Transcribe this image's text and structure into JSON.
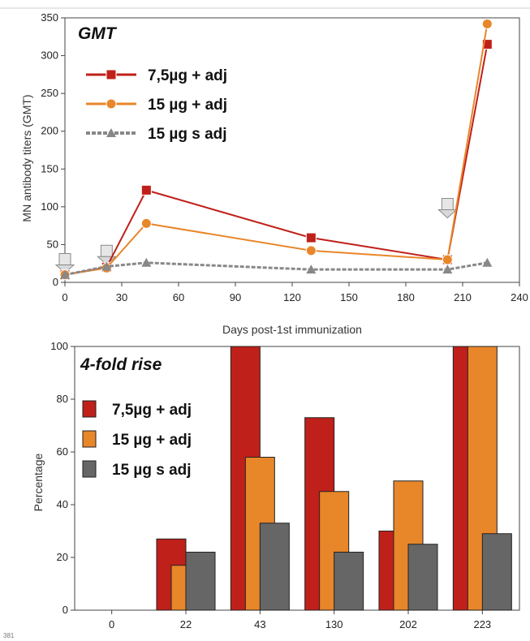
{
  "chart_data": [
    {
      "type": "line",
      "title": "GMT",
      "xlabel": "Days post-1st immunization",
      "ylabel": "MN antibody titers (GMT)",
      "xlim": [
        0,
        240
      ],
      "ylim": [
        0,
        350
      ],
      "xticks": [
        0,
        30,
        60,
        90,
        120,
        150,
        180,
        210,
        240
      ],
      "yticks": [
        0,
        50,
        100,
        150,
        200,
        250,
        300,
        350
      ],
      "grid": false,
      "legend_position": "top-left",
      "series": [
        {
          "name": "7,5µg + adj",
          "color": "#c0201a",
          "marker": "square",
          "x": [
            0,
            22,
            43,
            130,
            202,
            223
          ],
          "y": [
            10,
            20,
            122,
            59,
            30,
            315
          ]
        },
        {
          "name": "15 µg + adj",
          "color": "#e8862a",
          "marker": "circle",
          "x": [
            0,
            22,
            43,
            130,
            202,
            223
          ],
          "y": [
            10,
            19,
            78,
            42,
            30,
            342
          ]
        },
        {
          "name": "15 µg s adj",
          "color": "#888888",
          "marker": "triangle",
          "dashed": true,
          "x": [
            0,
            22,
            43,
            130,
            202,
            223
          ],
          "y": [
            10,
            21,
            26,
            17,
            17,
            26
          ]
        }
      ],
      "annotations": [
        {
          "type": "vaccination-arrow",
          "x": 0
        },
        {
          "type": "vaccination-arrow",
          "x": 22
        },
        {
          "type": "vaccination-arrow",
          "x": 202
        }
      ]
    },
    {
      "type": "bar",
      "title": "4-fold rise",
      "xlabel": "",
      "ylabel": "Percentage",
      "ylim": [
        0,
        100
      ],
      "yticks": [
        0,
        20,
        40,
        60,
        80,
        100
      ],
      "grid": false,
      "legend_position": "top-left",
      "categories": [
        "0",
        "22",
        "43",
        "130",
        "202",
        "223"
      ],
      "series": [
        {
          "name": "7,5µg + adj",
          "color": "#c0201a",
          "values": [
            0,
            27,
            100,
            73,
            30,
            100
          ]
        },
        {
          "name": "15 µg + adj",
          "color": "#e8862a",
          "values": [
            0,
            17,
            58,
            45,
            49,
            100
          ]
        },
        {
          "name": "15 µg s adj",
          "color": "#666666",
          "values": [
            0,
            22,
            33,
            22,
            25,
            29
          ]
        }
      ]
    }
  ],
  "footnote": "381"
}
